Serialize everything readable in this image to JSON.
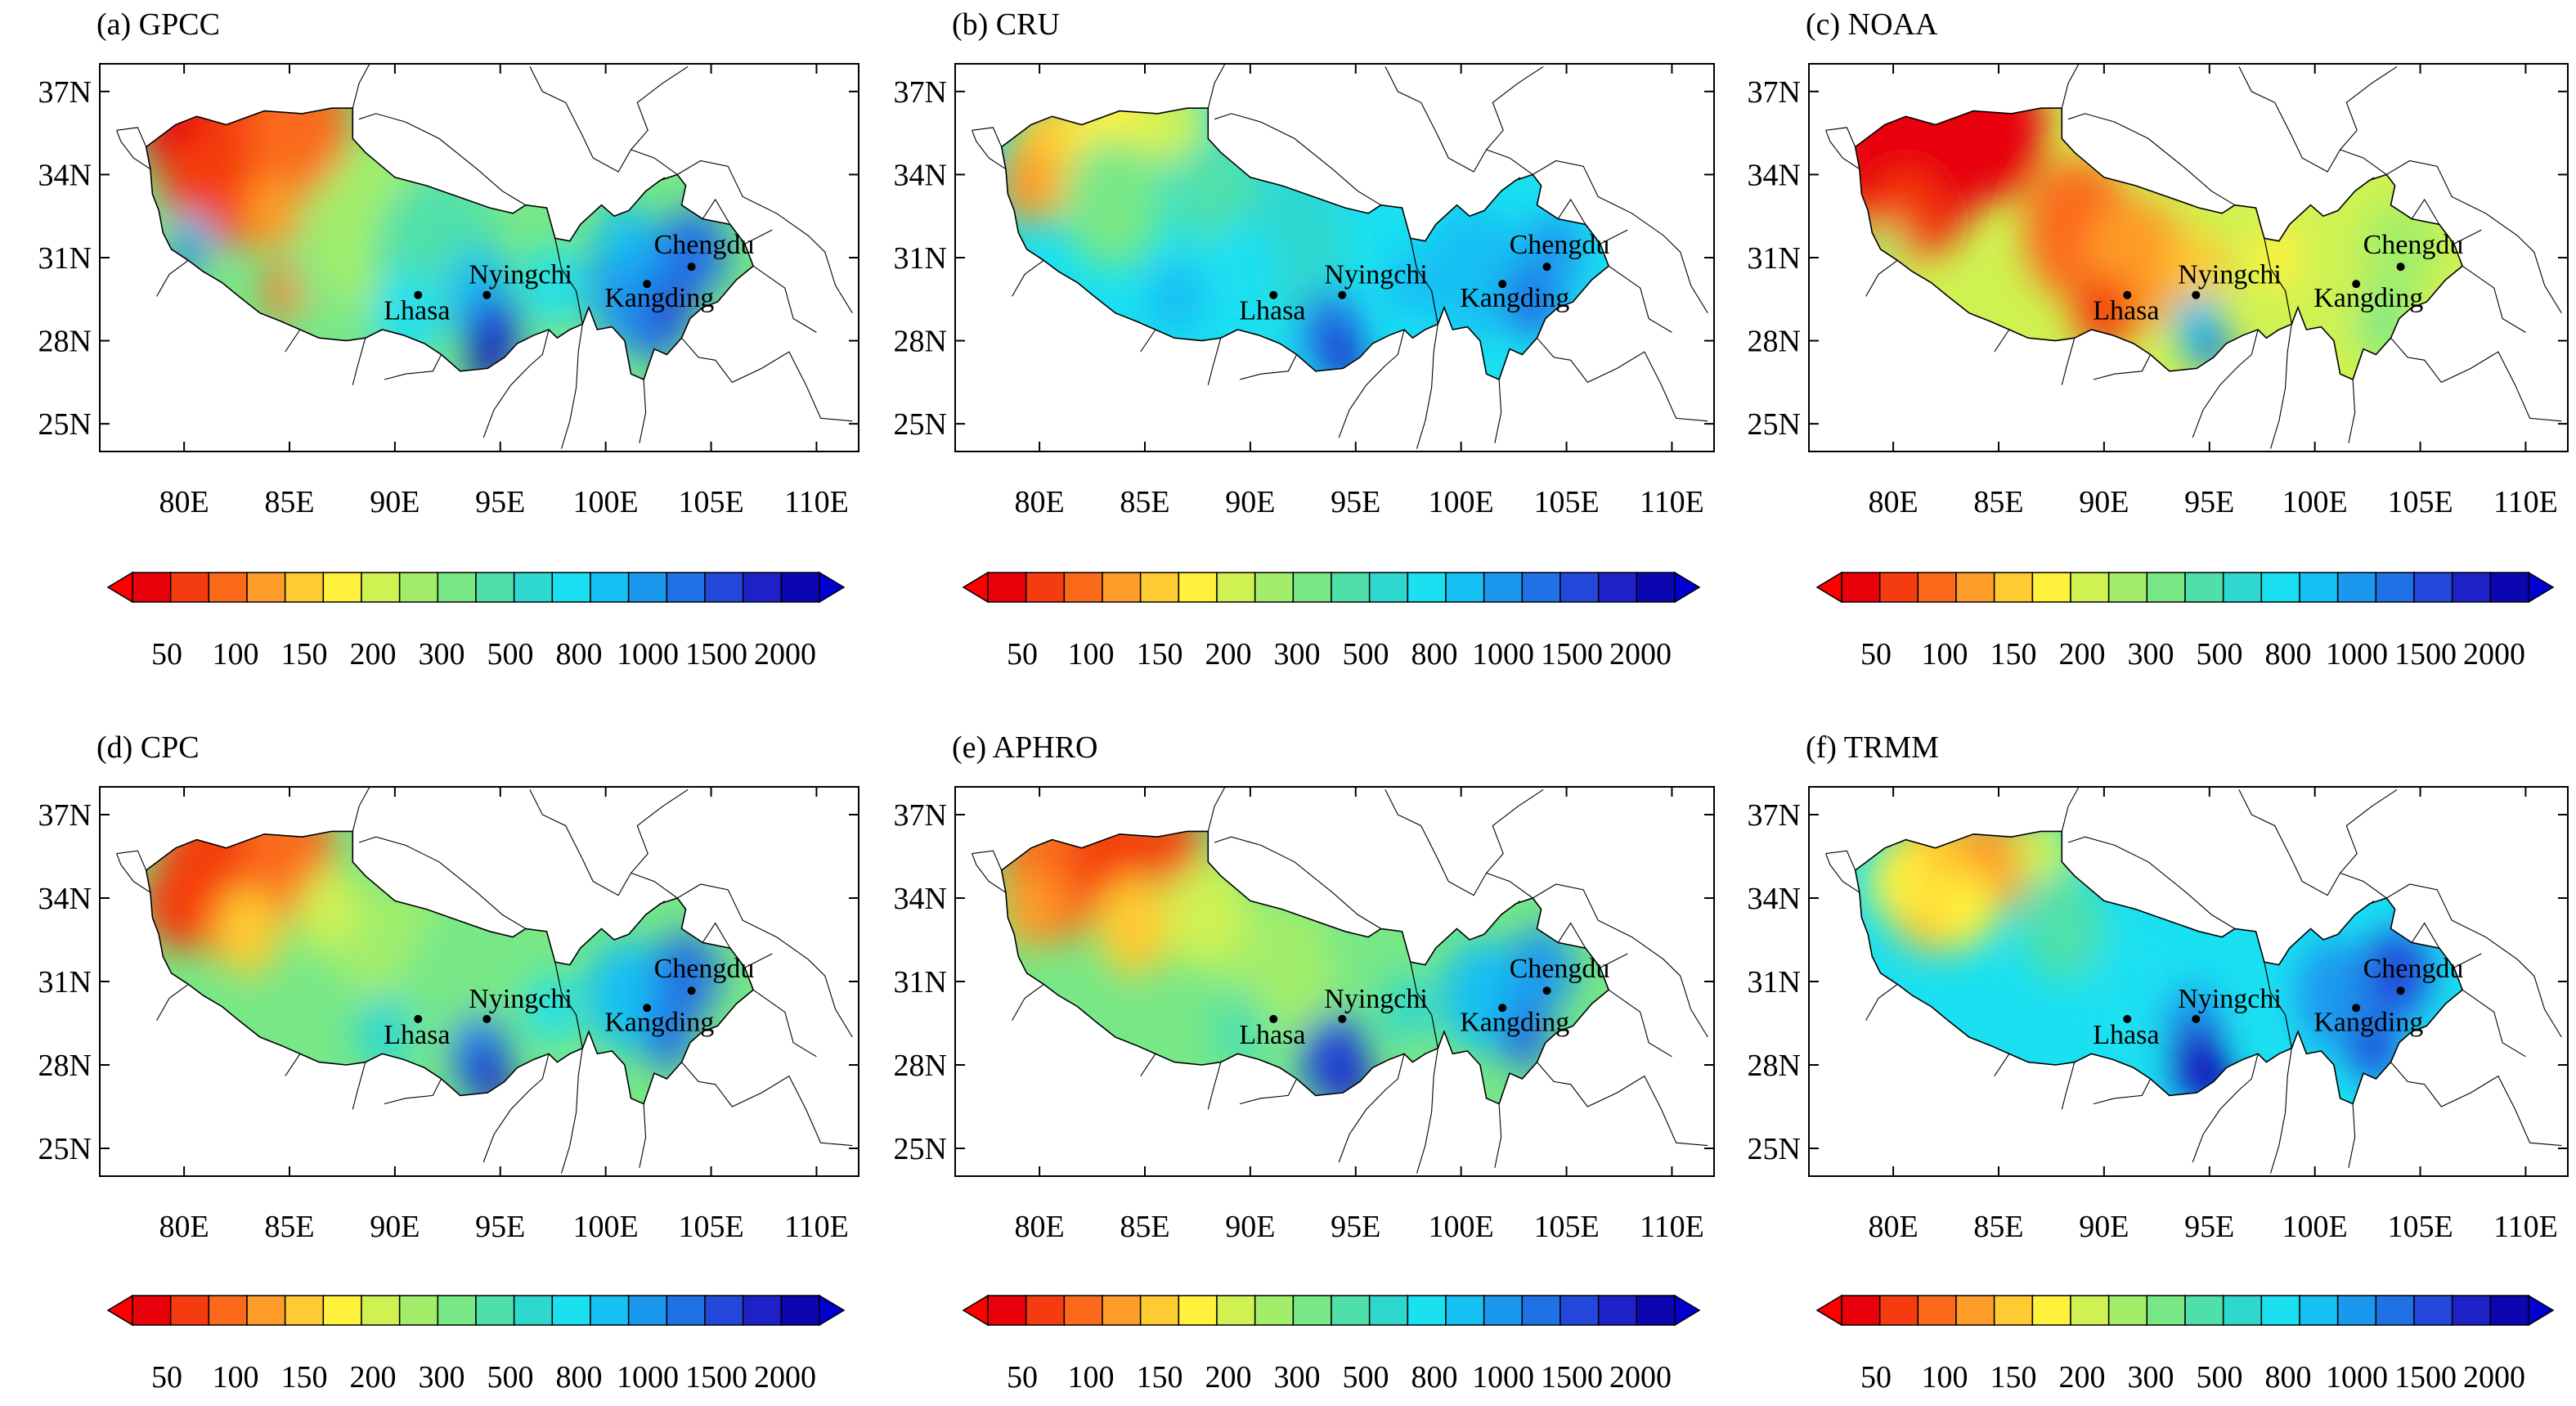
{
  "figure": {
    "lat_ticks": [
      "37N",
      "34N",
      "31N",
      "28N",
      "25N"
    ],
    "lon_ticks": [
      "80E",
      "85E",
      "90E",
      "95E",
      "100E",
      "105E",
      "110E"
    ],
    "lat_range": [
      24,
      38
    ],
    "lon_range": [
      76,
      112
    ],
    "colorbar": {
      "labels": [
        "50",
        "100",
        "150",
        "200",
        "300",
        "500",
        "800",
        "1000",
        "1500",
        "2000"
      ],
      "colors": [
        "#e8000b",
        "#f43c10",
        "#fb6a1a",
        "#fd9c28",
        "#fecb32",
        "#fff13c",
        "#cff252",
        "#a2ee6b",
        "#78e887",
        "#4fe0aa",
        "#2fd8cf",
        "#1ae0f1",
        "#17c0f3",
        "#1a98ee",
        "#2070e6",
        "#2448da",
        "#1e22c6",
        "#0c06b0"
      ],
      "end_colors": {
        "low": "#ff0000",
        "high": "#0000d0"
      }
    },
    "cities": [
      {
        "name": "Lhasa",
        "lon": 91.1,
        "lat": 29.65
      },
      {
        "name": "Nyingchi",
        "lon": 94.36,
        "lat": 29.65
      },
      {
        "name": "Kangding",
        "lon": 101.96,
        "lat": 30.05
      },
      {
        "name": "Chengdu",
        "lon": 104.07,
        "lat": 30.67
      }
    ],
    "panels": [
      {
        "title": "(a) GPCC"
      },
      {
        "title": "(b) CRU"
      },
      {
        "title": "(c) NOAA"
      },
      {
        "title": "(d) CPC"
      },
      {
        "title": "(e) APHRO"
      },
      {
        "title": "(f) TRMM"
      }
    ]
  }
}
